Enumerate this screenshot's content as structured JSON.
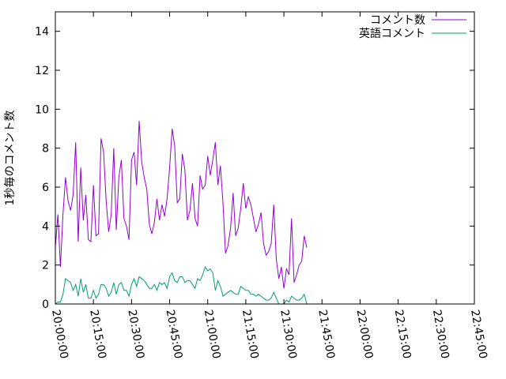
{
  "chart_data": {
    "type": "line",
    "ylabel": "1秒毎のコメント数",
    "xlabel": "",
    "ylim": [
      0,
      15
    ],
    "xlim": [
      "20:00:00",
      "22:45:00"
    ],
    "yticks": [
      "0",
      "2",
      "4",
      "6",
      "8",
      "10",
      "12",
      "14"
    ],
    "xticks": [
      "20:00:00",
      "20:15:00",
      "20:30:00",
      "20:45:00",
      "21:00:00",
      "21:15:00",
      "21:30:00",
      "21:45:00",
      "22:00:00",
      "22:15:00",
      "22:30:00",
      "22:45:00"
    ],
    "grid": false,
    "legend_position": "top-right",
    "series": [
      {
        "name": "コメント数",
        "color": "#9400d3",
        "points": [
          [
            "20:00:00",
            2.9
          ],
          [
            "20:01:00",
            4.6
          ],
          [
            "20:02:00",
            1.9
          ],
          [
            "20:03:00",
            4.6
          ],
          [
            "20:04:00",
            6.5
          ],
          [
            "20:05:00",
            5.3
          ],
          [
            "20:06:00",
            4.8
          ],
          [
            "20:07:00",
            5.6
          ],
          [
            "20:08:00",
            8.3
          ],
          [
            "20:09:00",
            3.2
          ],
          [
            "20:10:00",
            7.0
          ],
          [
            "20:11:00",
            4.3
          ],
          [
            "20:12:00",
            5.6
          ],
          [
            "20:13:00",
            3.3
          ],
          [
            "20:14:00",
            3.2
          ],
          [
            "20:15:00",
            6.1
          ],
          [
            "20:16:00",
            3.5
          ],
          [
            "20:17:00",
            3.6
          ],
          [
            "20:18:00",
            8.5
          ],
          [
            "20:19:00",
            7.8
          ],
          [
            "20:20:00",
            5.3
          ],
          [
            "20:21:00",
            3.7
          ],
          [
            "20:22:00",
            4.6
          ],
          [
            "20:23:00",
            8.0
          ],
          [
            "20:24:00",
            3.8
          ],
          [
            "20:25:00",
            6.5
          ],
          [
            "20:26:00",
            7.4
          ],
          [
            "20:27:00",
            4.4
          ],
          [
            "20:28:00",
            4.0
          ],
          [
            "20:29:00",
            3.3
          ],
          [
            "20:30:00",
            7.4
          ],
          [
            "20:31:00",
            7.8
          ],
          [
            "20:32:00",
            6.1
          ],
          [
            "20:33:00",
            9.4
          ],
          [
            "20:34:00",
            7.3
          ],
          [
            "20:35:00",
            6.5
          ],
          [
            "20:36:00",
            5.9
          ],
          [
            "20:37:00",
            4.1
          ],
          [
            "20:38:00",
            3.6
          ],
          [
            "20:39:00",
            4.2
          ],
          [
            "20:40:00",
            5.4
          ],
          [
            "20:41:00",
            4.3
          ],
          [
            "20:42:00",
            5.1
          ],
          [
            "20:43:00",
            4.5
          ],
          [
            "20:44:00",
            5.4
          ],
          [
            "20:45:00",
            7.0
          ],
          [
            "20:46:00",
            9.0
          ],
          [
            "20:47:00",
            8.1
          ],
          [
            "20:48:00",
            5.2
          ],
          [
            "20:49:00",
            5.4
          ],
          [
            "20:50:00",
            7.7
          ],
          [
            "20:51:00",
            6.9
          ],
          [
            "20:52:00",
            4.3
          ],
          [
            "20:53:00",
            4.8
          ],
          [
            "20:54:00",
            6.2
          ],
          [
            "20:55:00",
            4.4
          ],
          [
            "20:56:00",
            4.0
          ],
          [
            "20:57:00",
            6.6
          ],
          [
            "20:58:00",
            5.9
          ],
          [
            "20:59:00",
            6.1
          ],
          [
            "21:00:00",
            7.6
          ],
          [
            "21:01:00",
            6.6
          ],
          [
            "21:02:00",
            7.4
          ],
          [
            "21:03:00",
            8.3
          ],
          [
            "21:04:00",
            6.1
          ],
          [
            "21:05:00",
            7.1
          ],
          [
            "21:06:00",
            5.2
          ],
          [
            "21:07:00",
            2.6
          ],
          [
            "21:08:00",
            3.0
          ],
          [
            "21:09:00",
            3.9
          ],
          [
            "21:10:00",
            5.7
          ],
          [
            "21:11:00",
            3.5
          ],
          [
            "21:12:00",
            3.9
          ],
          [
            "21:13:00",
            4.9
          ],
          [
            "21:14:00",
            6.2
          ],
          [
            "21:15:00",
            4.9
          ],
          [
            "21:16:00",
            5.5
          ],
          [
            "21:17:00",
            5.1
          ],
          [
            "21:18:00",
            4.4
          ],
          [
            "21:19:00",
            3.7
          ],
          [
            "21:20:00",
            4.1
          ],
          [
            "21:21:00",
            4.7
          ],
          [
            "21:22:00",
            3.1
          ],
          [
            "21:23:00",
            2.5
          ],
          [
            "21:24:00",
            2.7
          ],
          [
            "21:25:00",
            3.1
          ],
          [
            "21:26:00",
            5.1
          ],
          [
            "21:27:00",
            2.3
          ],
          [
            "21:28:00",
            1.3
          ],
          [
            "21:29:00",
            1.9
          ],
          [
            "21:30:00",
            0.8
          ],
          [
            "21:31:00",
            1.8
          ],
          [
            "21:32:00",
            1.5
          ],
          [
            "21:33:00",
            4.4
          ],
          [
            "21:34:00",
            1.1
          ],
          [
            "21:35:00",
            1.5
          ],
          [
            "21:36:00",
            2.0
          ],
          [
            "21:37:00",
            2.2
          ],
          [
            "21:38:00",
            3.5
          ],
          [
            "21:39:00",
            2.9
          ]
        ]
      },
      {
        "name": "英語コメント",
        "color": "#009e73",
        "points": [
          [
            "20:00:00",
            0.0
          ],
          [
            "20:01:00",
            0.1
          ],
          [
            "20:02:00",
            0.1
          ],
          [
            "20:03:00",
            0.5
          ],
          [
            "20:04:00",
            1.3
          ],
          [
            "20:05:00",
            1.2
          ],
          [
            "20:06:00",
            1.1
          ],
          [
            "20:07:00",
            0.7
          ],
          [
            "20:08:00",
            1.0
          ],
          [
            "20:09:00",
            0.4
          ],
          [
            "20:10:00",
            1.3
          ],
          [
            "20:11:00",
            0.6
          ],
          [
            "20:12:00",
            1.0
          ],
          [
            "20:13:00",
            0.3
          ],
          [
            "20:14:00",
            0.3
          ],
          [
            "20:15:00",
            0.7
          ],
          [
            "20:16:00",
            0.3
          ],
          [
            "20:17:00",
            0.5
          ],
          [
            "20:18:00",
            1.0
          ],
          [
            "20:19:00",
            1.0
          ],
          [
            "20:20:00",
            0.8
          ],
          [
            "20:21:00",
            0.4
          ],
          [
            "20:22:00",
            0.6
          ],
          [
            "20:23:00",
            1.1
          ],
          [
            "20:24:00",
            0.5
          ],
          [
            "20:25:00",
            1.0
          ],
          [
            "20:26:00",
            1.1
          ],
          [
            "20:27:00",
            0.7
          ],
          [
            "20:28:00",
            0.7
          ],
          [
            "20:29:00",
            0.4
          ],
          [
            "20:30:00",
            1.0
          ],
          [
            "20:31:00",
            1.3
          ],
          [
            "20:32:00",
            0.9
          ],
          [
            "20:33:00",
            1.4
          ],
          [
            "20:34:00",
            1.3
          ],
          [
            "20:35:00",
            1.2
          ],
          [
            "20:36:00",
            1.0
          ],
          [
            "20:37:00",
            0.8
          ],
          [
            "20:38:00",
            0.8
          ],
          [
            "20:39:00",
            1.0
          ],
          [
            "20:40:00",
            0.7
          ],
          [
            "20:41:00",
            1.1
          ],
          [
            "20:42:00",
            1.0
          ],
          [
            "20:43:00",
            1.1
          ],
          [
            "20:44:00",
            0.8
          ],
          [
            "20:45:00",
            1.4
          ],
          [
            "20:46:00",
            1.6
          ],
          [
            "20:47:00",
            1.2
          ],
          [
            "20:48:00",
            1.1
          ],
          [
            "20:49:00",
            1.4
          ],
          [
            "20:50:00",
            1.4
          ],
          [
            "20:51:00",
            1.1
          ],
          [
            "20:52:00",
            1.2
          ],
          [
            "20:53:00",
            1.2
          ],
          [
            "20:54:00",
            1.0
          ],
          [
            "20:55:00",
            0.8
          ],
          [
            "20:56:00",
            1.3
          ],
          [
            "20:57:00",
            1.2
          ],
          [
            "20:58:00",
            1.5
          ],
          [
            "20:59:00",
            1.9
          ],
          [
            "21:00:00",
            1.7
          ],
          [
            "21:01:00",
            1.8
          ],
          [
            "21:02:00",
            1.6
          ],
          [
            "21:03:00",
            0.7
          ],
          [
            "21:04:00",
            1.2
          ],
          [
            "21:05:00",
            0.9
          ],
          [
            "21:06:00",
            0.4
          ],
          [
            "21:07:00",
            0.5
          ],
          [
            "21:08:00",
            0.6
          ],
          [
            "21:09:00",
            0.7
          ],
          [
            "21:10:00",
            0.6
          ],
          [
            "21:11:00",
            0.5
          ],
          [
            "21:12:00",
            0.5
          ],
          [
            "21:13:00",
            0.9
          ],
          [
            "21:14:00",
            0.8
          ],
          [
            "21:15:00",
            0.7
          ],
          [
            "21:16:00",
            0.7
          ],
          [
            "21:17:00",
            0.5
          ],
          [
            "21:18:00",
            0.5
          ],
          [
            "21:19:00",
            0.4
          ],
          [
            "21:20:00",
            0.5
          ],
          [
            "21:21:00",
            0.4
          ],
          [
            "21:22:00",
            0.3
          ],
          [
            "21:23:00",
            0.2
          ],
          [
            "21:24:00",
            0.2
          ],
          [
            "21:25:00",
            0.3
          ],
          [
            "21:26:00",
            0.6
          ],
          [
            "21:27:00",
            0.3
          ],
          [
            "21:28:00",
            0.0
          ],
          [
            "21:29:00",
            0.0
          ],
          [
            "21:30:00",
            0.0
          ],
          [
            "21:31:00",
            0.2
          ],
          [
            "21:32:00",
            0.1
          ],
          [
            "21:33:00",
            0.4
          ],
          [
            "21:34:00",
            0.3
          ],
          [
            "21:35:00",
            0.2
          ],
          [
            "21:36:00",
            0.2
          ],
          [
            "21:37:00",
            0.3
          ],
          [
            "21:38:00",
            0.5
          ],
          [
            "21:39:00",
            0.0
          ]
        ]
      }
    ]
  }
}
